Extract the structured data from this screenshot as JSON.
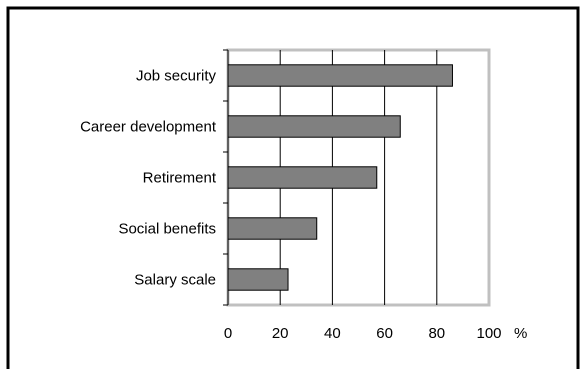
{
  "chart_data": {
    "type": "bar",
    "orientation": "horizontal",
    "categories": [
      "Job security",
      "Career development",
      "Retirement",
      "Social benefits",
      "Salary scale"
    ],
    "values": [
      86,
      66,
      57,
      34,
      23
    ],
    "title": "",
    "xlabel": "",
    "ylabel": "",
    "x_unit": "%",
    "xlim": [
      0,
      100
    ],
    "x_ticks": [
      0,
      20,
      40,
      60,
      80,
      100
    ],
    "grid": true,
    "legend": "none",
    "colors": {
      "bar_fill": "#808080",
      "bar_stroke": "#000000",
      "plot_border": "#c0c0c0",
      "grid": "#000000",
      "frame": "#000000"
    }
  }
}
